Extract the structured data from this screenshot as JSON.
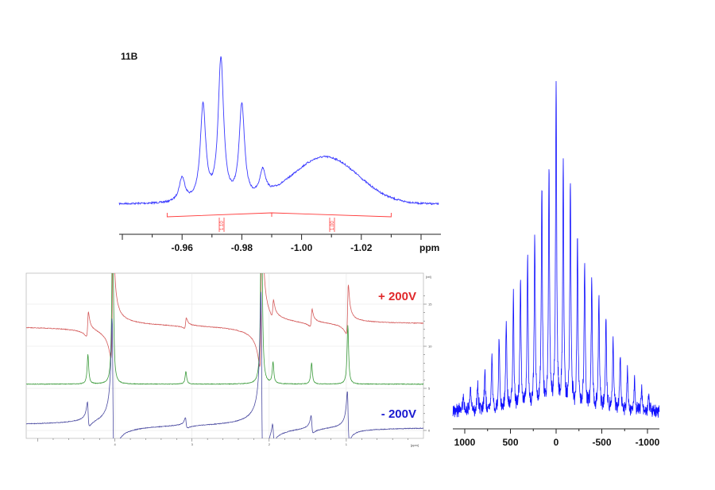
{
  "chart_data": [
    {
      "type": "line",
      "title": "11B",
      "xlabel": "ppm",
      "xlim": [
        -0.94,
        -1.04
      ],
      "xticks": [
        "-0.96",
        "-0.98",
        "-1.00",
        "-1.02"
      ],
      "xtick_values": [
        -0.96,
        -0.98,
        -1.0,
        -1.02
      ],
      "line_color": "#3a3aff",
      "peaks": [
        {
          "ppm": -0.96,
          "height": 0.17,
          "width": 0.0012
        },
        {
          "ppm": -0.967,
          "height": 0.67,
          "width": 0.0011
        },
        {
          "ppm": -0.973,
          "height": 1.0,
          "width": 0.0011
        },
        {
          "ppm": -0.98,
          "height": 0.67,
          "width": 0.0011
        },
        {
          "ppm": -0.987,
          "height": 0.18,
          "width": 0.0012
        },
        {
          "ppm": -1.008,
          "height": 0.33,
          "width": 0.011,
          "shape": "broad"
        }
      ],
      "integrals": [
        {
          "range": [
            -0.955,
            -0.99
          ],
          "value": "1.10"
        },
        {
          "range": [
            -0.99,
            -1.03
          ],
          "value": "1.00"
        }
      ],
      "integral_color": "#ff3b3b"
    },
    {
      "type": "line",
      "xlabel": "[ppm]",
      "ylabel": "[rel]",
      "xlim": [
        5.15,
        0.0
      ],
      "xticks": [
        "4",
        "3",
        "2",
        "1"
      ],
      "xtick_values": [
        4,
        3,
        2,
        1
      ],
      "yticks": [
        "0",
        "5",
        "10",
        "15"
      ],
      "ytick_values": [
        0,
        5,
        10,
        15
      ],
      "grid": true,
      "series": [
        {
          "name": "+ 200V",
          "color": "#d45a5a",
          "label_color": "#e0282a",
          "offset": 12.5,
          "phase": "dispersive"
        },
        {
          "name": "",
          "color": "#3a9a3a",
          "offset": 5.5,
          "phase": "absorptive"
        },
        {
          "name": "- 200V",
          "color": "#4a4aa0",
          "label_color": "#1a1ad0",
          "offset": 0.5,
          "phase": "inverted-dispersive"
        }
      ],
      "peaks_ppm": [
        4.35,
        4.03,
        3.08,
        2.1,
        1.95,
        1.45,
        0.98
      ],
      "peak_heights": [
        3.5,
        20,
        1.5,
        25,
        2.5,
        2.5,
        7
      ]
    },
    {
      "type": "line",
      "xlabel": "",
      "xlim": [
        1130,
        -1130
      ],
      "xticks": [
        "1000",
        "500",
        "0",
        "-500",
        "-1000"
      ],
      "xtick_values": [
        1000,
        500,
        0,
        -500,
        -1000
      ],
      "line_color": "#1010ff",
      "sideband_spacing_hz": 78,
      "sideband_intensities": [
        1.0,
        0.73,
        0.68,
        0.52,
        0.45,
        0.4,
        0.34,
        0.28,
        0.22,
        0.17,
        0.12,
        0.09,
        0.07,
        0.05
      ]
    }
  ]
}
